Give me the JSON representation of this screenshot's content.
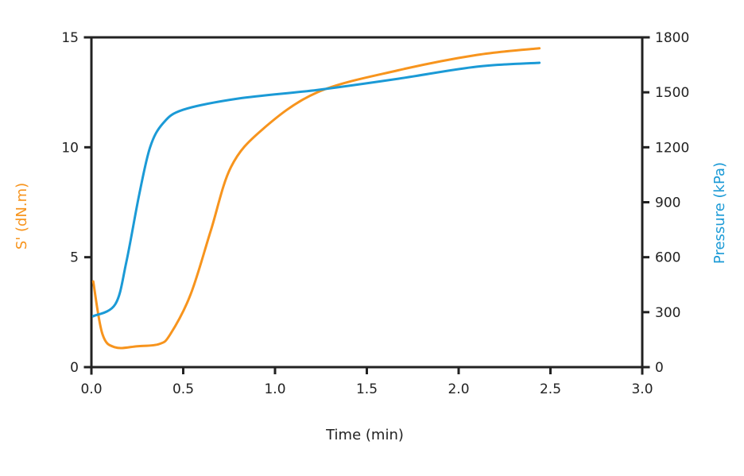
{
  "chart_data": {
    "type": "line",
    "title": "",
    "xlabel": "Time (min)",
    "ylabel": "S' (dN.m)",
    "y2label": "Pressure (kPa)",
    "xlim": [
      0,
      3.0
    ],
    "ylim": [
      0,
      15
    ],
    "y2lim": [
      0,
      1800
    ],
    "xticks": [
      "0.0",
      "0.5",
      "1.0",
      "1.5",
      "2.0",
      "2.5",
      "3.0"
    ],
    "yticks": [
      "0",
      "5",
      "10",
      "15"
    ],
    "y2ticks": [
      "0",
      "300",
      "600",
      "900",
      "1200",
      "1500",
      "1800"
    ],
    "grid": false,
    "legend": "none",
    "colors": {
      "s_prime": "#f7941d",
      "pressure": "#1b9ad6",
      "axis": "#222222"
    },
    "series": [
      {
        "name": "S' (dN.m)",
        "axis": "left",
        "color": "#f7941d",
        "x": [
          0.01,
          0.06,
          0.13,
          0.25,
          0.37,
          0.43,
          0.54,
          0.65,
          0.76,
          0.93,
          1.23,
          1.67,
          2.1,
          2.44
        ],
        "y": [
          3.9,
          1.5,
          0.9,
          0.95,
          1.05,
          1.5,
          3.3,
          6.2,
          9.1,
          10.8,
          12.5,
          13.5,
          14.2,
          14.5
        ]
      },
      {
        "name": "Pressure (kPa)",
        "axis": "right",
        "color": "#1b9ad6",
        "x": [
          0.01,
          0.13,
          0.19,
          0.26,
          0.32,
          0.39,
          0.5,
          0.8,
          1.23,
          1.67,
          2.1,
          2.44
        ],
        "y": [
          278,
          343,
          573,
          941,
          1201,
          1331,
          1405,
          1466,
          1513,
          1574,
          1640,
          1661
        ]
      }
    ]
  }
}
